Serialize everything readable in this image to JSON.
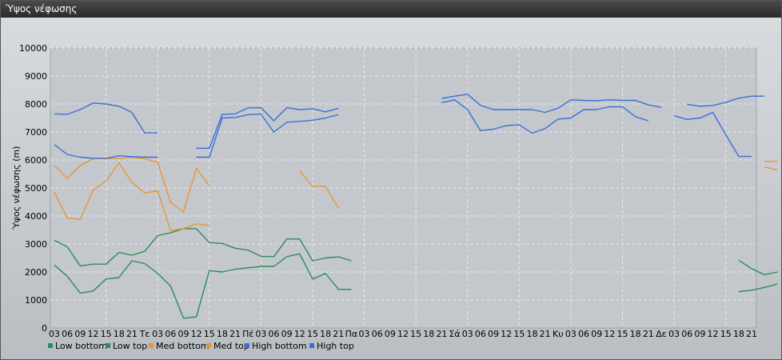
{
  "window": {
    "title": "Ύψος νέφωσης"
  },
  "chart_data": {
    "type": "line",
    "title": "",
    "ylabel": "Ύψος νέφωσης (m)",
    "xlabel": "",
    "ylim": [
      0,
      10000
    ],
    "yticks": [
      0,
      1000,
      2000,
      3000,
      4000,
      5000,
      6000,
      7000,
      8000,
      9000,
      10000
    ],
    "grid": true,
    "legend_position": "bottom-left",
    "x_tick_labels": [
      "03",
      "06",
      "09",
      "12",
      "15",
      "18",
      "21",
      "Τε",
      "03",
      "06",
      "09",
      "12",
      "15",
      "18",
      "21",
      "Πέ",
      "03",
      "06",
      "09",
      "12",
      "15",
      "18",
      "21",
      "Πα",
      "03",
      "06",
      "09",
      "12",
      "15",
      "18",
      "21",
      "Σά",
      "03",
      "06",
      "09",
      "12",
      "15",
      "18",
      "21",
      "Κυ",
      "03",
      "06",
      "09",
      "12",
      "15",
      "18",
      "21",
      "Δε",
      "03",
      "06",
      "09",
      "12",
      "15",
      "18",
      "21"
    ],
    "series": [
      {
        "name": "Low bottom",
        "color": "#2e8b57",
        "values": [
          2250,
          1850,
          1250,
          1320,
          1750,
          1800,
          2400,
          2300,
          1950,
          1500,
          350,
          400,
          2050,
          2000,
          2100,
          2150,
          2200,
          2200,
          2550,
          2650,
          1750,
          1950,
          1380,
          1380,
          null,
          null,
          null,
          null,
          null,
          null,
          null,
          null,
          null,
          null,
          null,
          null,
          null,
          null,
          null,
          null,
          null,
          null,
          null,
          null,
          null,
          null,
          null,
          null,
          null,
          null,
          null,
          null,
          null,
          1300,
          1350,
          1450,
          1570
        ]
      },
      {
        "name": "Low top",
        "color": "#2e8b57",
        "values": [
          3130,
          2900,
          2220,
          2280,
          2280,
          2700,
          2600,
          2740,
          3300,
          3400,
          3550,
          3550,
          3050,
          3020,
          2850,
          2780,
          2560,
          2550,
          3180,
          3180,
          2400,
          2500,
          2540,
          2400,
          null,
          null,
          null,
          null,
          null,
          null,
          null,
          null,
          null,
          null,
          null,
          null,
          null,
          null,
          null,
          null,
          null,
          null,
          null,
          null,
          null,
          null,
          null,
          null,
          null,
          null,
          null,
          null,
          null,
          2420,
          2120,
          1900,
          2000
        ]
      },
      {
        "name": "Med bottom",
        "color": "#e8943a",
        "values": [
          4850,
          3930,
          3880,
          4920,
          5250,
          5900,
          5200,
          4820,
          4900,
          3480,
          3550,
          3720,
          3660,
          null,
          null,
          null,
          null,
          null,
          null,
          null,
          null,
          null,
          null,
          null,
          null,
          null,
          null,
          null,
          null,
          null,
          null,
          null,
          null,
          null,
          null,
          null,
          null,
          null,
          null,
          null,
          null,
          null,
          null,
          null,
          null,
          null,
          null,
          null,
          null,
          null,
          null,
          null,
          null,
          null,
          null,
          5750,
          5650
        ]
      },
      {
        "name": "Med top",
        "color": "#e8943a",
        "values": [
          5800,
          5350,
          5800,
          6050,
          6050,
          6050,
          6100,
          6050,
          5920,
          4480,
          4150,
          5700,
          5080,
          null,
          null,
          null,
          null,
          null,
          null,
          5600,
          5060,
          5060,
          4280,
          null,
          null,
          null,
          null,
          null,
          null,
          null,
          null,
          null,
          null,
          null,
          null,
          null,
          null,
          null,
          null,
          null,
          null,
          null,
          null,
          null,
          null,
          null,
          null,
          null,
          null,
          null,
          null,
          null,
          null,
          null,
          null,
          5950,
          5950
        ]
      },
      {
        "name": "High bottom",
        "color": "#3a6fd8",
        "values": [
          6550,
          6200,
          6100,
          6060,
          6060,
          6150,
          6120,
          6100,
          6100,
          null,
          null,
          6100,
          6100,
          7500,
          7520,
          7620,
          7640,
          7000,
          7350,
          7380,
          7420,
          7500,
          7620,
          null,
          null,
          null,
          null,
          null,
          null,
          null,
          8050,
          8150,
          7800,
          7050,
          7100,
          7230,
          7260,
          6960,
          7120,
          7460,
          7500,
          7800,
          7800,
          7900,
          7900,
          7550,
          7400,
          null,
          7580,
          7450,
          7500,
          7700,
          6900,
          6130,
          6130,
          null,
          null
        ]
      },
      {
        "name": "High top",
        "color": "#3a6fd8",
        "values": [
          7650,
          7630,
          7800,
          8030,
          8000,
          7920,
          7700,
          6970,
          6970,
          null,
          null,
          6420,
          6420,
          7630,
          7650,
          7860,
          7870,
          7400,
          7870,
          7800,
          7830,
          7720,
          7850,
          null,
          null,
          null,
          null,
          null,
          null,
          null,
          8200,
          8280,
          8350,
          7950,
          7800,
          7800,
          7800,
          7800,
          7700,
          7850,
          8150,
          8130,
          8120,
          8150,
          8130,
          8130,
          7970,
          7880,
          null,
          7990,
          7920,
          7950,
          8060,
          8210,
          8280,
          8280,
          null
        ]
      }
    ]
  }
}
